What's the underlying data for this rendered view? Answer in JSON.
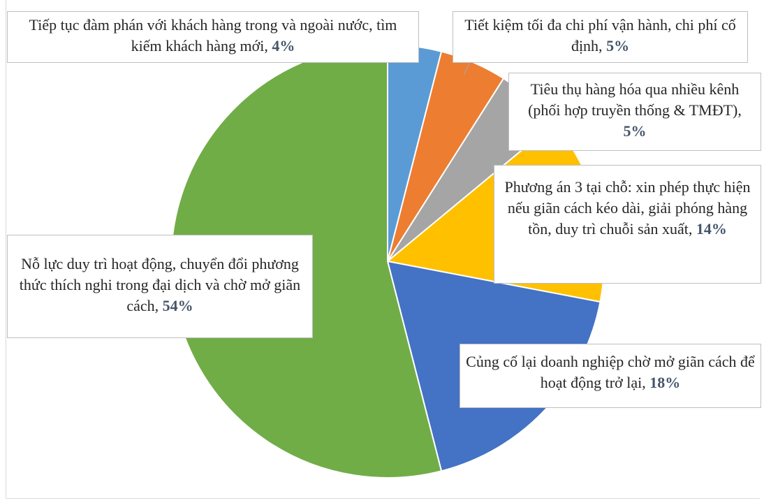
{
  "chart_data": {
    "type": "pie",
    "title": "",
    "slices": [
      {
        "label": "Tiếp tục đàm phán với khách hàng trong và ngoài nước, tìm kiếm khách hàng mới,",
        "value": 4,
        "percent_label": "4%",
        "color": "#5b9bd5"
      },
      {
        "label": "Tiết kiệm tối đa chi phí vận hành, chi phí cố định,",
        "value": 5,
        "percent_label": "5%",
        "color": "#ed7d31"
      },
      {
        "label": "Tiêu thụ hàng hóa qua nhiều kênh (phối hợp truyền thống & TMĐT),",
        "value": 5,
        "percent_label": "5%",
        "color": "#a5a5a5"
      },
      {
        "label": "Phương án 3 tại chỗ: xin phép thực hiện nếu giãn cách kéo dài, giải phóng hàng tồn, duy trì chuỗi sản xuất,",
        "value": 14,
        "percent_label": "14%",
        "color": "#ffc000"
      },
      {
        "label": "Củng cố lại doanh nghiệp chờ mở giãn cách để hoạt động trở lại,",
        "value": 18,
        "percent_label": "18%",
        "color": "#4472c4"
      },
      {
        "label": "Nỗ lực duy trì hoạt động, chuyển đổi phương thức thích nghi trong đại dịch và chờ mở giãn cách,",
        "value": 54,
        "percent_label": "54%",
        "color": "#70ad47"
      }
    ],
    "legend": "none",
    "data_labels": "callout"
  }
}
